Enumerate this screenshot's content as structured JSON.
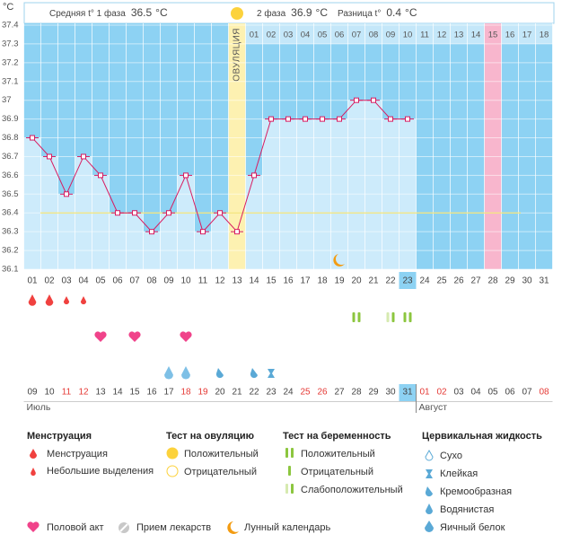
{
  "chart_data": {
    "type": "line",
    "y_label": "°C",
    "unit": "°C",
    "header": {
      "phase1_label": "Средняя t° 1 фаза",
      "phase1_avg": 36.5,
      "phase2_label": "2 фаза",
      "phase2_avg": 36.9,
      "diff_label": "Разница t°",
      "diff": 0.4
    },
    "ovulation_label": "ОВУЛЯЦИЯ",
    "ovulation_index": 12,
    "today_index": 22,
    "pink_index": 27,
    "color": "#d81b60",
    "coverline": 36.4,
    "ylim": [
      36.1,
      37.4
    ],
    "yticks": [
      36.1,
      36.2,
      36.3,
      36.4,
      36.5,
      36.6,
      36.7,
      36.8,
      36.9,
      37,
      37.1,
      37.2,
      37.3,
      37.4
    ],
    "categories": [
      "01",
      "02",
      "03",
      "04",
      "05",
      "06",
      "07",
      "08",
      "09",
      "10",
      "11",
      "12",
      "13",
      "14",
      "15",
      "16",
      "17",
      "18",
      "19",
      "20",
      "21",
      "22",
      "23",
      "24",
      "25",
      "26",
      "27",
      "28",
      "29",
      "30",
      "31"
    ],
    "values": [
      36.8,
      36.7,
      36.5,
      36.7,
      36.6,
      36.4,
      36.4,
      36.3,
      36.4,
      36.6,
      36.3,
      36.4,
      36.3,
      36.6,
      36.9,
      36.9,
      36.9,
      36.9,
      36.9,
      37.0,
      37.0,
      36.9,
      36.9,
      null,
      null,
      null,
      null,
      null,
      null,
      null,
      null
    ],
    "phase2_days": [
      "01",
      "02",
      "03",
      "04",
      "05",
      "06",
      "07",
      "08",
      "09",
      "10",
      "11",
      "12",
      "13",
      "14",
      "15",
      "16",
      "17",
      "18"
    ],
    "dates": [
      "09",
      "10",
      "11",
      "12",
      "13",
      "14",
      "15",
      "16",
      "17",
      "18",
      "19",
      "20",
      "21",
      "22",
      "23",
      "24",
      "25",
      "26",
      "27",
      "28",
      "29",
      "30",
      "31",
      "01",
      "02",
      "03",
      "04",
      "05",
      "06",
      "07",
      "08"
    ],
    "weekends": [
      2,
      3,
      9,
      10,
      16,
      17,
      23,
      24,
      30
    ],
    "months": [
      {
        "name": "Июль",
        "from": 0
      },
      {
        "name": "Август",
        "from": 23
      }
    ],
    "events": {
      "menstruation": {
        "days": [
          "01",
          "02",
          "03",
          "04"
        ],
        "kinds": [
          "large",
          "large",
          "small",
          "small"
        ]
      },
      "pregnancy_test": {
        "days": [
          "20",
          "22",
          "23"
        ],
        "kinds": [
          "positive",
          "weak",
          "positive"
        ]
      },
      "sex": {
        "days": [
          "05",
          "07",
          "10"
        ]
      },
      "cervical": {
        "days": [
          "09",
          "10",
          "12",
          "14",
          "15"
        ],
        "kinds": [
          "egg",
          "egg",
          "creamy",
          "creamy",
          "sticky"
        ]
      },
      "moon": {
        "days": [
          "19"
        ]
      }
    },
    "legend": [
      {
        "title": "Менструация",
        "items": [
          "Менструация",
          "Небольшие выделения"
        ]
      },
      {
        "title": "Тест на овуляцию",
        "items": [
          "Положительный",
          "Отрицательный"
        ]
      },
      {
        "title": "Тест на беременность",
        "items": [
          "Положительный",
          "Отрицательный",
          "Слабоположительный"
        ]
      },
      {
        "title": "Цервикальная жидкость",
        "items": [
          "Сухо",
          "Клейкая",
          "Кремообразная",
          "Водянистая",
          "Яичный белок"
        ]
      }
    ],
    "legend_extra": [
      "Половой акт",
      "Прием лекарств",
      "Лунный календарь"
    ]
  }
}
